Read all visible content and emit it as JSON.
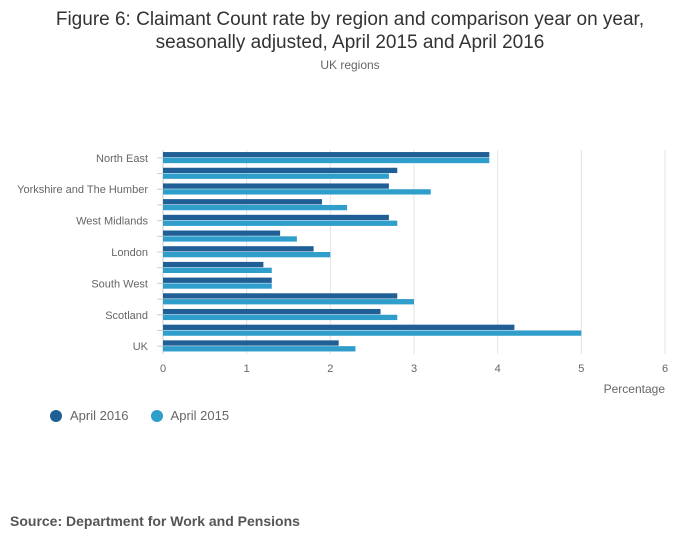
{
  "title_line1": "Figure 6: Claimant Count rate by region and comparison year on year,",
  "title_line2": "seasonally adjusted, April 2015 and April 2016",
  "subtitle": "UK regions",
  "source": "Source: Department for Work and Pensions",
  "colors": {
    "april_2016": "#1f5f95",
    "april_2015": "#2f9ecb",
    "grid": "#e3e3e3",
    "axis_text": "#666666"
  },
  "chart_data": {
    "type": "bar",
    "orientation": "horizontal",
    "categories": [
      "North East",
      "",
      "Yorkshire and The Humber",
      "",
      "West Midlands",
      "",
      "London",
      "",
      "South West",
      "",
      "Scotland",
      "",
      "UK"
    ],
    "series": [
      {
        "name": "April 2016",
        "values": [
          3.9,
          2.8,
          2.7,
          1.9,
          2.7,
          1.4,
          1.8,
          1.2,
          1.3,
          2.8,
          2.6,
          4.2,
          2.1
        ]
      },
      {
        "name": "April 2015",
        "values": [
          3.9,
          2.7,
          3.2,
          2.2,
          2.8,
          1.6,
          2.0,
          1.3,
          1.3,
          3.0,
          2.8,
          5.0,
          2.3
        ]
      }
    ],
    "xlabel": "Percentage",
    "xlim": [
      0,
      6
    ],
    "xticks": [
      0,
      1,
      2,
      3,
      4,
      5,
      6
    ],
    "grid": true,
    "legend_position": "bottom-left"
  }
}
